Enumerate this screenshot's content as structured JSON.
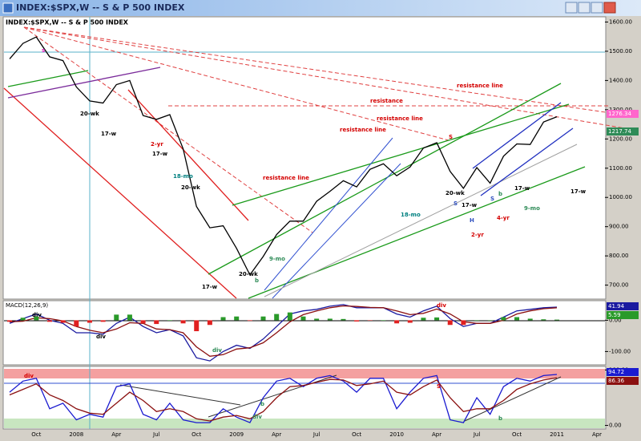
{
  "chart_data": [
    {
      "type": "line",
      "title": "INDEX:$SPX,W -- S & P 500 INDEX",
      "categories": [
        null,
        null,
        "Oct",
        null,
        null,
        "2008",
        null,
        null,
        "Apr",
        null,
        null,
        "Jul",
        null,
        null,
        "Oct",
        null,
        null,
        "2009",
        null,
        null,
        "Apr",
        null,
        null,
        "Jul",
        null,
        null,
        "Oct",
        null,
        null,
        "2010",
        null,
        null,
        "Apr",
        null,
        null,
        "Jul",
        null,
        null,
        "Oct",
        null,
        null,
        "2011",
        null,
        null,
        "Apr"
      ],
      "series": [
        {
          "name": "$SPX",
          "color": "#000000",
          "values": [
            1474,
            1527,
            1549,
            1481,
            1468,
            1378,
            1330,
            1323,
            1386,
            1400,
            1280,
            1267,
            1283,
            1166,
            969,
            896,
            903,
            826,
            735,
            798,
            873,
            919,
            919,
            987,
            1021,
            1057,
            1036,
            1096,
            1115,
            1074,
            1104,
            1169,
            1187,
            1089,
            1031,
            1102,
            1049,
            1141,
            1183,
            1181,
            1258,
            1276,
            null,
            null,
            null
          ]
        }
      ],
      "ylim": [
        655,
        1615
      ],
      "yticks": [
        {
          "value": 700,
          "label": "700.00"
        },
        {
          "value": 800,
          "label": "800.00"
        },
        {
          "value": 900,
          "label": "900.00"
        },
        {
          "value": 1000,
          "label": "1000.00"
        },
        {
          "value": 1100,
          "label": "1100.00"
        },
        {
          "value": 1200,
          "label": "1200.00"
        },
        {
          "value": 1300,
          "label": "1300.00"
        },
        {
          "value": 1400,
          "label": "1400.00"
        },
        {
          "value": 1500,
          "label": "1500.00"
        },
        {
          "value": 1600,
          "label": "1600.00"
        }
      ],
      "value_badges": [
        {
          "text": "1276.34",
          "color": "#ff66cc"
        },
        {
          "text": "1217.74",
          "color": "#2e8b57"
        }
      ],
      "annotations": [
        {
          "text": "resistance line",
          "color": "#d40000"
        },
        {
          "text": "resistance",
          "color": "#d40000"
        },
        {
          "text": "resistance line",
          "color": "#d40000"
        },
        {
          "text": "resistance line",
          "color": "#d40000"
        },
        {
          "text": "resistance line",
          "color": "#d40000"
        },
        {
          "text": "2-yr",
          "color": "#d40000"
        },
        {
          "text": "18-mo",
          "color": "#008080"
        },
        {
          "text": "20-wk",
          "color": "#000000"
        },
        {
          "text": "17-w",
          "color": "#000000"
        },
        {
          "text": "17-w",
          "color": "#000000"
        },
        {
          "text": "20-wk",
          "color": "#000000"
        },
        {
          "text": "17-w",
          "color": "#000000"
        },
        {
          "text": "20-wk",
          "color": "#000000"
        },
        {
          "text": "9-mo",
          "color": "#2e8b57"
        },
        {
          "text": "18-mo",
          "color": "#008080"
        },
        {
          "text": "S",
          "color": "#d40000"
        },
        {
          "text": "S",
          "color": "#3050c0"
        },
        {
          "text": "H",
          "color": "#3050c0"
        },
        {
          "text": "2-yr",
          "color": "#d40000"
        },
        {
          "text": "4-yr",
          "color": "#d40000"
        },
        {
          "text": "9-mo",
          "color": "#2e8b57"
        },
        {
          "text": "17-w",
          "color": "#000000"
        },
        {
          "text": "17-w",
          "color": "#000000"
        },
        {
          "text": "b",
          "color": "#2e8b57"
        },
        {
          "text": "S",
          "color": "#3050c0"
        },
        {
          "text": "20-wk",
          "color": "#000000"
        },
        {
          "text": "17-w",
          "color": "#000000"
        },
        {
          "text": "s",
          "color": "#e020c0"
        },
        {
          "text": "b",
          "color": "#2e8b57"
        }
      ]
    },
    {
      "type": "macd",
      "title": "MACD(12,26,9)",
      "series": [
        {
          "name": "MACD",
          "color": "#1a1aa0",
          "values": [
            -10,
            5,
            20,
            0,
            -10,
            -40,
            -40,
            -45,
            -10,
            10,
            -20,
            -40,
            -30,
            -50,
            -120,
            -130,
            -100,
            -80,
            -90,
            -60,
            -20,
            20,
            30,
            35,
            45,
            50,
            40,
            40,
            40,
            20,
            10,
            30,
            45,
            5,
            -20,
            -10,
            -10,
            10,
            30,
            35,
            40,
            42,
            null,
            null,
            null
          ]
        },
        {
          "name": "Signal",
          "color": "#8b1010",
          "values": [
            -5,
            -3,
            8,
            5,
            -2,
            -20,
            -32,
            -40,
            -28,
            -8,
            -10,
            -28,
            -30,
            -40,
            -85,
            -115,
            -110,
            -92,
            -88,
            -72,
            -40,
            -5,
            18,
            30,
            40,
            46,
            44,
            41,
            40,
            30,
            18,
            22,
            36,
            20,
            -5,
            -10,
            -10,
            0,
            20,
            30,
            37,
            40,
            null,
            null,
            null
          ]
        },
        {
          "name": "Histogram",
          "color": "#2a9a2a",
          "negative_color": "#e02020",
          "values": [
            -5,
            8,
            12,
            -5,
            -8,
            -20,
            -8,
            -5,
            18,
            18,
            -10,
            -12,
            0,
            -10,
            -35,
            -15,
            10,
            12,
            -2,
            12,
            20,
            25,
            12,
            5,
            5,
            4,
            -4,
            -1,
            0,
            -10,
            -8,
            8,
            9,
            -15,
            -15,
            0,
            0,
            10,
            10,
            5,
            3,
            2,
            null,
            null,
            null
          ]
        }
      ],
      "ylim": [
        -140,
        60
      ],
      "yticks": [
        {
          "value": -100,
          "label": "-100.00"
        },
        {
          "value": 0,
          "label": "0.00"
        }
      ],
      "value_badges": [
        {
          "text": "41.94",
          "color": "#1a1aa0"
        },
        {
          "text": "5.59",
          "color": "#2a9a2a"
        }
      ],
      "annotations": [
        {
          "text": "div",
          "color": "#000000"
        },
        {
          "text": "div",
          "color": "#000000"
        },
        {
          "text": "div",
          "color": "#2e8b57"
        },
        {
          "text": "div",
          "color": "#d40000"
        }
      ]
    },
    {
      "type": "oscillator",
      "series": [
        {
          "name": "Fast",
          "color": "#1a1ad0",
          "values": [
            60,
            80,
            85,
            30,
            40,
            10,
            20,
            15,
            70,
            75,
            20,
            10,
            40,
            10,
            5,
            5,
            30,
            15,
            5,
            50,
            80,
            85,
            70,
            85,
            90,
            80,
            60,
            85,
            85,
            30,
            60,
            85,
            90,
            10,
            5,
            50,
            20,
            70,
            85,
            80,
            90,
            92,
            null,
            null,
            null
          ]
        },
        {
          "name": "Slow",
          "color": "#8b1010",
          "values": [
            55,
            65,
            75,
            55,
            45,
            30,
            22,
            20,
            40,
            60,
            45,
            25,
            30,
            25,
            12,
            8,
            15,
            18,
            12,
            25,
            50,
            70,
            72,
            78,
            83,
            82,
            72,
            75,
            80,
            60,
            55,
            70,
            82,
            50,
            25,
            30,
            30,
            45,
            65,
            75,
            82,
            86,
            null,
            null,
            null
          ]
        }
      ],
      "ylim": [
        -5,
        105
      ],
      "yticks": [
        {
          "value": 0,
          "label": "0.00"
        },
        {
          "value": 100,
          "label": "100.00"
        }
      ],
      "value_badges": [
        {
          "text": "94.72",
          "color": "#1a1ad0"
        },
        {
          "text": "86.36",
          "color": "#8b1010"
        }
      ],
      "annotations": [
        {
          "text": "div",
          "color": "#d40000"
        },
        {
          "text": "div",
          "color": "#2e8b57"
        },
        {
          "text": "b",
          "color": "#2e8b57"
        },
        {
          "text": "S",
          "color": "#d40000"
        },
        {
          "text": "b",
          "color": "#2e8b57"
        }
      ]
    }
  ]
}
